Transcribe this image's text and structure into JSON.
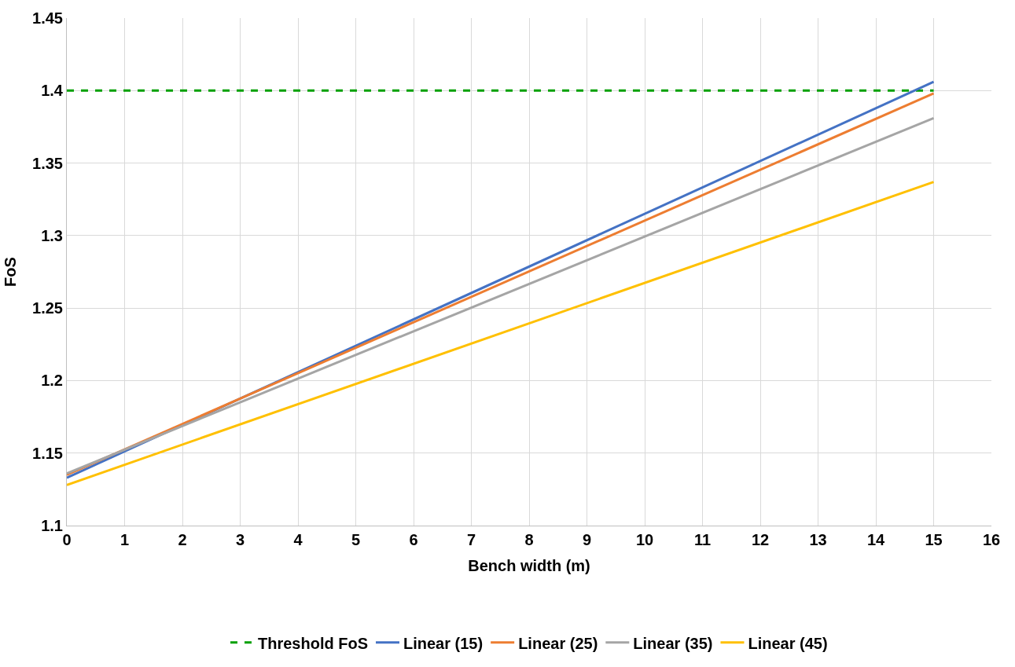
{
  "chart_data": {
    "type": "line",
    "xlabel": "Bench width (m)",
    "ylabel": "FoS",
    "x": [
      0,
      15
    ],
    "xlim": [
      0,
      16
    ],
    "xticks": [
      0,
      1,
      2,
      3,
      4,
      5,
      6,
      7,
      8,
      9,
      10,
      11,
      12,
      13,
      14,
      15,
      16
    ],
    "ylim": [
      1.1,
      1.45
    ],
    "yticks": [
      1.1,
      1.15,
      1.2,
      1.25,
      1.3,
      1.35,
      1.4,
      1.45
    ],
    "grid": true,
    "legend": "bottom",
    "marker": "none",
    "series": [
      {
        "name": "Threshold FoS",
        "color": "#00a000",
        "line_style": "dashed",
        "values": [
          1.4,
          1.4
        ]
      },
      {
        "name": "Linear (15)",
        "color": "#4472c4",
        "values": [
          1.133,
          1.406
        ]
      },
      {
        "name": "Linear (25)",
        "color": "#ed7d31",
        "values": [
          1.135,
          1.398
        ]
      },
      {
        "name": "Linear (35)",
        "color": "#a5a5a5",
        "values": [
          1.136,
          1.381
        ]
      },
      {
        "name": "Linear (45)",
        "color": "#ffc000",
        "values": [
          1.128,
          1.337
        ]
      }
    ]
  }
}
